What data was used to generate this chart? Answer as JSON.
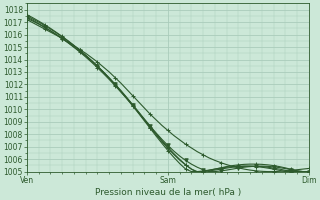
{
  "title": "Pression niveau de la mer( hPa )",
  "bg_color": "#cce8d8",
  "grid_color": "#aaccbb",
  "line_color": "#2d5a2d",
  "ylim": [
    1005,
    1018.5
  ],
  "yticks": [
    1005,
    1006,
    1007,
    1008,
    1009,
    1010,
    1011,
    1012,
    1013,
    1014,
    1015,
    1016,
    1017,
    1018
  ],
  "xtick_labels": [
    "Ven",
    "Sam",
    "Dim"
  ],
  "xtick_positions": [
    0.0,
    0.5,
    1.0
  ],
  "num_points": 49,
  "lines": [
    {
      "values": [
        1017.2,
        1016.95,
        1016.7,
        1016.45,
        1016.2,
        1015.95,
        1015.68,
        1015.4,
        1015.1,
        1014.8,
        1014.5,
        1014.15,
        1013.8,
        1013.4,
        1013.0,
        1012.55,
        1012.1,
        1011.6,
        1011.1,
        1010.6,
        1010.1,
        1009.6,
        1009.15,
        1008.7,
        1008.3,
        1007.9,
        1007.55,
        1007.2,
        1006.9,
        1006.6,
        1006.35,
        1006.1,
        1005.9,
        1005.72,
        1005.56,
        1005.42,
        1005.3,
        1005.2,
        1005.12,
        1005.06,
        1005.02,
        1005.0,
        1005.0,
        1005.02,
        1005.05,
        1005.1,
        1005.15,
        1005.2,
        1005.25
      ],
      "marker": "+"
    },
    {
      "values": [
        1017.4,
        1017.15,
        1016.88,
        1016.6,
        1016.3,
        1016.0,
        1015.68,
        1015.35,
        1015.0,
        1014.65,
        1014.28,
        1013.88,
        1013.45,
        1013.0,
        1012.52,
        1012.02,
        1011.5,
        1010.95,
        1010.38,
        1009.8,
        1009.22,
        1008.65,
        1008.1,
        1007.58,
        1007.1,
        1006.65,
        1006.25,
        1005.9,
        1005.6,
        1005.35,
        1005.15,
        1005.0,
        1005.0,
        1005.05,
        1005.12,
        1005.2,
        1005.28,
        1005.35,
        1005.4,
        1005.43,
        1005.44,
        1005.42,
        1005.38,
        1005.32,
        1005.24,
        1005.15,
        1005.06,
        1005.0,
        1005.0
      ],
      "marker": "v"
    },
    {
      "values": [
        1017.5,
        1017.25,
        1017.0,
        1016.73,
        1016.44,
        1016.14,
        1015.82,
        1015.48,
        1015.12,
        1014.74,
        1014.34,
        1013.92,
        1013.48,
        1013.01,
        1012.52,
        1012.01,
        1011.47,
        1010.91,
        1010.33,
        1009.74,
        1009.14,
        1008.54,
        1007.96,
        1007.4,
        1006.87,
        1006.38,
        1005.93,
        1005.54,
        1005.2,
        1004.93,
        1005.0,
        1005.1,
        1005.2,
        1005.3,
        1005.4,
        1005.48,
        1005.54,
        1005.58,
        1005.6,
        1005.6,
        1005.58,
        1005.54,
        1005.48,
        1005.4,
        1005.3,
        1005.18,
        1005.06,
        1005.0,
        1005.0
      ],
      "marker": "+"
    },
    {
      "values": [
        1017.3,
        1017.08,
        1016.84,
        1016.58,
        1016.3,
        1016.0,
        1015.68,
        1015.34,
        1014.98,
        1014.6,
        1014.2,
        1013.78,
        1013.34,
        1012.88,
        1012.4,
        1011.9,
        1011.38,
        1010.85,
        1010.3,
        1009.74,
        1009.17,
        1008.6,
        1008.03,
        1007.48,
        1006.95,
        1006.45,
        1005.98,
        1005.56,
        1005.2,
        1005.0,
        1005.0,
        1005.05,
        1005.12,
        1005.2,
        1005.28,
        1005.35,
        1005.4,
        1005.43,
        1005.44,
        1005.43,
        1005.4,
        1005.35,
        1005.28,
        1005.2,
        1005.1,
        1005.0,
        1005.0,
        1005.0,
        1005.0
      ],
      "marker": "+"
    },
    {
      "values": [
        1017.6,
        1017.35,
        1017.08,
        1016.8,
        1016.5,
        1016.18,
        1015.85,
        1015.5,
        1015.13,
        1014.74,
        1014.33,
        1013.9,
        1013.45,
        1012.98,
        1012.48,
        1011.96,
        1011.42,
        1010.86,
        1010.28,
        1009.68,
        1009.07,
        1008.46,
        1007.85,
        1007.26,
        1006.69,
        1006.15,
        1005.65,
        1005.21,
        1005.0,
        1005.0,
        1005.05,
        1005.12,
        1005.2,
        1005.28,
        1005.35,
        1005.4,
        1005.43,
        1005.44,
        1005.43,
        1005.4,
        1005.35,
        1005.28,
        1005.2,
        1005.1,
        1005.0,
        1005.0,
        1005.0,
        1005.0,
        1005.0
      ],
      "marker": "+"
    }
  ]
}
